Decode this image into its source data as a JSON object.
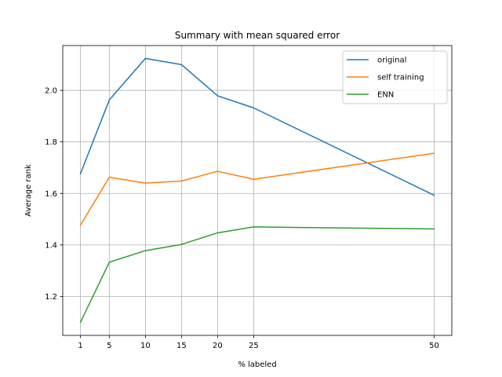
{
  "chart_data": {
    "type": "line",
    "title": "Summary with mean squared error",
    "xlabel": "% labeled",
    "ylabel": "Average rank",
    "x": [
      1,
      5,
      10,
      15,
      20,
      25,
      50
    ],
    "xticks": [
      1,
      5,
      10,
      15,
      20,
      25,
      50
    ],
    "xlim": [
      -1.45,
      52.45
    ],
    "yticks": [
      1.2,
      1.4,
      1.6,
      1.8,
      2.0
    ],
    "ytick_labels": [
      "1.2",
      "1.4",
      "1.6",
      "1.8",
      "2.0"
    ],
    "ylim": [
      1.049,
      2.174
    ],
    "grid": true,
    "legend_position": "top-right",
    "series": [
      {
        "name": "original",
        "color": "#1f77b4",
        "values": [
          1.676,
          1.963,
          2.124,
          2.1,
          1.979,
          1.932,
          1.593
        ]
      },
      {
        "name": "self training",
        "color": "#ff7f0e",
        "values": [
          1.477,
          1.663,
          1.64,
          1.648,
          1.686,
          1.655,
          1.756
        ]
      },
      {
        "name": "ENN",
        "color": "#2ca02c",
        "values": [
          1.1,
          1.333,
          1.378,
          1.402,
          1.447,
          1.47,
          1.462
        ]
      }
    ]
  }
}
